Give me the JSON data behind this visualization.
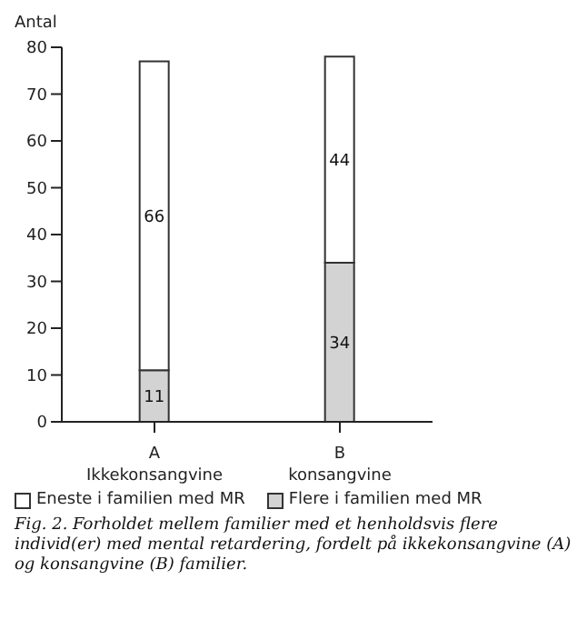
{
  "chart_data": {
    "type": "bar",
    "stacked": true,
    "ylabel": "Antal",
    "categories": [
      "A\nIkkekonsangvine",
      "B\nkonsangvine"
    ],
    "series": [
      {
        "name": "Flere i familien med MR",
        "color": "#d3d3d3",
        "values": [
          11,
          34
        ]
      },
      {
        "name": "Eneste i familien med MR",
        "color": "#ffffff",
        "values": [
          66,
          44
        ]
      }
    ],
    "ylim": [
      0,
      80
    ],
    "yticks": [
      0,
      10,
      20,
      30,
      40,
      50,
      60,
      70,
      80
    ],
    "data_labels": true,
    "legend": "bottom",
    "grid": false,
    "annotations": [
      "Fig. 2. Forholdet mellem familier med et henholdsvis flere individ(er) med mental retardering, fordelt på ikkekonsangvine (A) og konsangvine (B) familier."
    ]
  }
}
